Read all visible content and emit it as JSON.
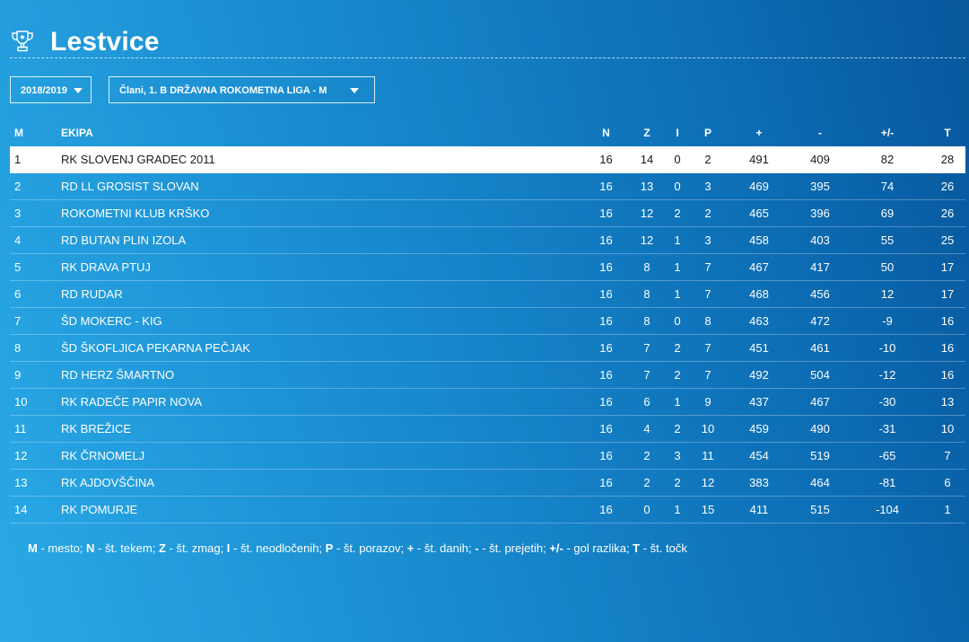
{
  "page": {
    "title": "Lestvice",
    "icon": "trophy-icon"
  },
  "filters": {
    "season": "2018/2019",
    "league": "Člani, 1. B DRŽAVNA ROKOMETNA LIGA - M"
  },
  "table": {
    "headers": {
      "pos": "M",
      "team": "EKIPA",
      "played": "N",
      "won": "Z",
      "draw": "I",
      "lost": "P",
      "gf": "+",
      "ga": "-",
      "diff": "+/-",
      "pts": "T"
    },
    "rows": [
      {
        "pos": "1",
        "team": "RK SLOVENJ GRADEC 2011",
        "played": "16",
        "won": "14",
        "draw": "0",
        "lost": "2",
        "gf": "491",
        "ga": "409",
        "diff": "82",
        "pts": "28"
      },
      {
        "pos": "2",
        "team": "RD LL GROSIST SLOVAN",
        "played": "16",
        "won": "13",
        "draw": "0",
        "lost": "3",
        "gf": "469",
        "ga": "395",
        "diff": "74",
        "pts": "26"
      },
      {
        "pos": "3",
        "team": "ROKOMETNI KLUB KRŠKO",
        "played": "16",
        "won": "12",
        "draw": "2",
        "lost": "2",
        "gf": "465",
        "ga": "396",
        "diff": "69",
        "pts": "26"
      },
      {
        "pos": "4",
        "team": "RD BUTAN PLIN IZOLA",
        "played": "16",
        "won": "12",
        "draw": "1",
        "lost": "3",
        "gf": "458",
        "ga": "403",
        "diff": "55",
        "pts": "25"
      },
      {
        "pos": "5",
        "team": "RK DRAVA PTUJ",
        "played": "16",
        "won": "8",
        "draw": "1",
        "lost": "7",
        "gf": "467",
        "ga": "417",
        "diff": "50",
        "pts": "17"
      },
      {
        "pos": "6",
        "team": "RD RUDAR",
        "played": "16",
        "won": "8",
        "draw": "1",
        "lost": "7",
        "gf": "468",
        "ga": "456",
        "diff": "12",
        "pts": "17"
      },
      {
        "pos": "7",
        "team": "ŠD MOKERC - KIG",
        "played": "16",
        "won": "8",
        "draw": "0",
        "lost": "8",
        "gf": "463",
        "ga": "472",
        "diff": "-9",
        "pts": "16"
      },
      {
        "pos": "8",
        "team": "ŠD ŠKOFLJICA PEKARNA PEČJAK",
        "played": "16",
        "won": "7",
        "draw": "2",
        "lost": "7",
        "gf": "451",
        "ga": "461",
        "diff": "-10",
        "pts": "16"
      },
      {
        "pos": "9",
        "team": "RD HERZ ŠMARTNO",
        "played": "16",
        "won": "7",
        "draw": "2",
        "lost": "7",
        "gf": "492",
        "ga": "504",
        "diff": "-12",
        "pts": "16"
      },
      {
        "pos": "10",
        "team": "RK RADEČE PAPIR NOVA",
        "played": "16",
        "won": "6",
        "draw": "1",
        "lost": "9",
        "gf": "437",
        "ga": "467",
        "diff": "-30",
        "pts": "13"
      },
      {
        "pos": "11",
        "team": "RK BREŽICE",
        "played": "16",
        "won": "4",
        "draw": "2",
        "lost": "10",
        "gf": "459",
        "ga": "490",
        "diff": "-31",
        "pts": "10"
      },
      {
        "pos": "12",
        "team": "RK ČRNOMELJ",
        "played": "16",
        "won": "2",
        "draw": "3",
        "lost": "11",
        "gf": "454",
        "ga": "519",
        "diff": "-65",
        "pts": "7"
      },
      {
        "pos": "13",
        "team": "RK AJDOVŠČINA",
        "played": "16",
        "won": "2",
        "draw": "2",
        "lost": "12",
        "gf": "383",
        "ga": "464",
        "diff": "-81",
        "pts": "6"
      },
      {
        "pos": "14",
        "team": "RK POMURJE",
        "played": "16",
        "won": "0",
        "draw": "1",
        "lost": "15",
        "gf": "411",
        "ga": "515",
        "diff": "-104",
        "pts": "1"
      }
    ]
  },
  "legend": [
    {
      "key": "M",
      "text": " - mesto; "
    },
    {
      "key": "N",
      "text": " - št. tekem; "
    },
    {
      "key": "Z",
      "text": " - št. zmag; "
    },
    {
      "key": "I",
      "text": " - št. neodločenih; "
    },
    {
      "key": "P",
      "text": " - št. porazov; "
    },
    {
      "key": "+",
      "text": " - št. danih; "
    },
    {
      "key": "-",
      "text": " - št. prejetih; "
    },
    {
      "key": "+/-",
      "text": " - gol razlika; "
    },
    {
      "key": "T",
      "text": " - št. točk"
    }
  ],
  "colors": {
    "background_light": "#2aa9e6",
    "background_dark": "#07579c",
    "text": "#ffffff",
    "highlight_row": "#ffffff",
    "highlight_text": "#1a1a1a"
  }
}
